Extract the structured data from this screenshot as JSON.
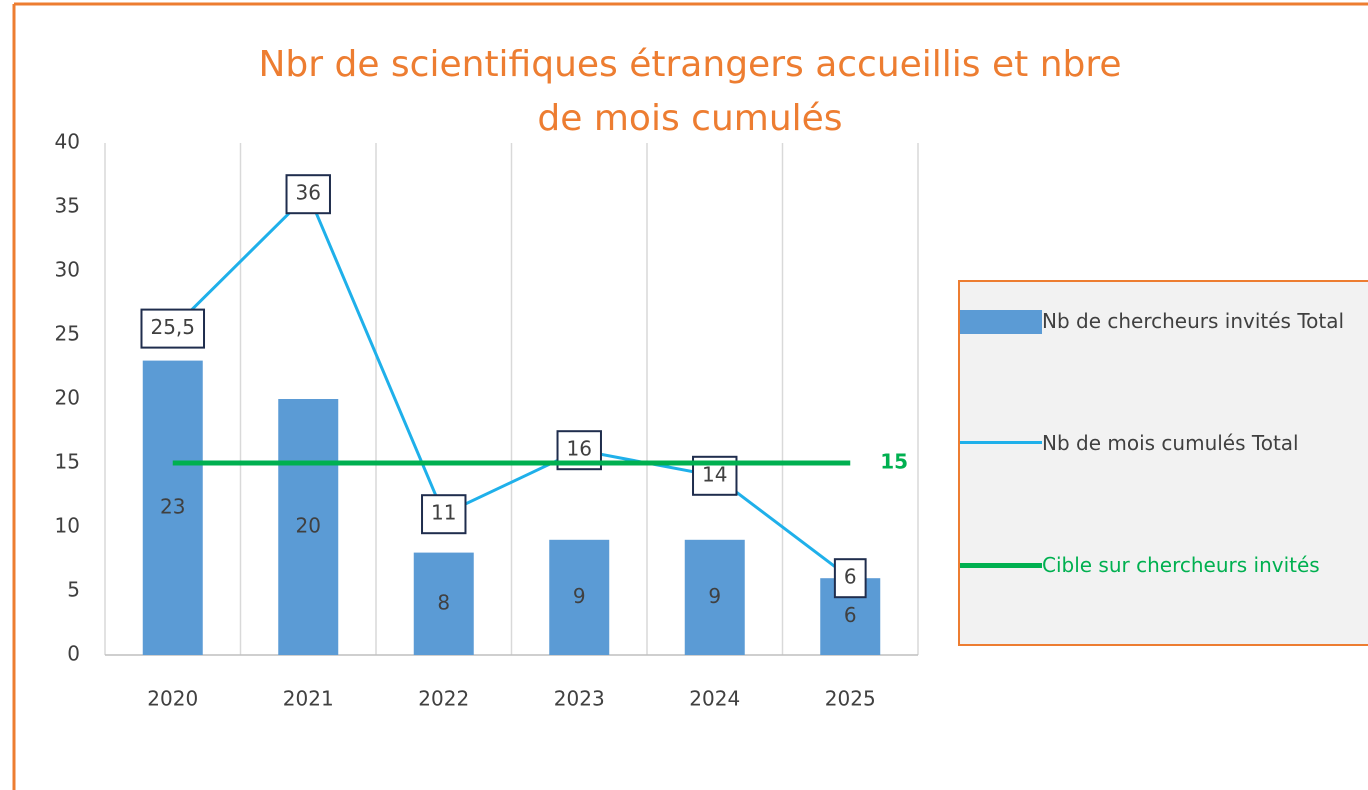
{
  "chart_data": {
    "type": "bar",
    "title": "Nbr de scientifiques étrangers accueillis et nbre de mois cumulés",
    "categories": [
      "2020",
      "2021",
      "2022",
      "2023",
      "2024",
      "2025"
    ],
    "series": [
      {
        "name": "Nb de chercheurs invités Total",
        "type": "bar",
        "color": "#5b9bd5",
        "values": [
          23,
          20,
          8,
          9,
          9,
          6
        ]
      },
      {
        "name": "Nb de mois cumulés Total",
        "type": "line",
        "color": "#1fb0ea",
        "values": [
          25.5,
          36,
          11,
          16,
          14,
          6
        ],
        "value_labels": [
          "25,5",
          "36",
          "11",
          "16",
          "14",
          "6"
        ]
      },
      {
        "name": "Cible sur chercheurs invités",
        "type": "line",
        "color": "#00b050",
        "legend_text_color": "#00b050",
        "values": [
          15,
          15,
          15,
          15,
          15,
          15
        ],
        "value_labels": [
          null,
          null,
          null,
          null,
          null,
          "15"
        ]
      }
    ],
    "ylim": [
      0,
      40
    ],
    "yticks": [
      0,
      5,
      10,
      15,
      20,
      25,
      30,
      35,
      40
    ],
    "grid": true
  }
}
